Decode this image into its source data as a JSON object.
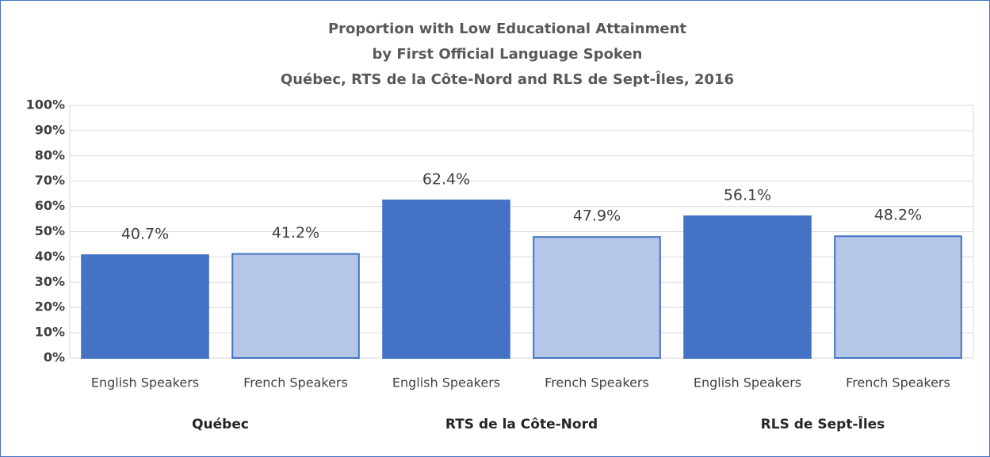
{
  "chart_data": {
    "type": "bar",
    "title": [
      "Proportion with Low Educational Attainment",
      "by First Official Language Spoken",
      "Québec, RTS de la Côte-Nord and RLS de Sept-Îles, 2016"
    ],
    "categories": [
      "English Speakers",
      "French Speakers",
      "English Speakers",
      "French Speakers",
      "English Speakers",
      "French Speakers"
    ],
    "groups": [
      "Québec",
      "RTS de la Côte-Nord",
      "RLS de Sept-Îles"
    ],
    "values": [
      40.7,
      41.2,
      62.4,
      47.9,
      56.1,
      48.2
    ],
    "value_labels": [
      "40.7%",
      "41.2%",
      "62.4%",
      "47.9%",
      "56.1%",
      "48.2%"
    ],
    "colors": [
      "#4472c4",
      "#b4c7e7",
      "#4472c4",
      "#b4c7e7",
      "#4472c4",
      "#b4c7e7"
    ],
    "ylim": [
      0,
      100
    ],
    "yticks": [
      {
        "value": 0,
        "label": "0%"
      },
      {
        "value": 10,
        "label": "10%"
      },
      {
        "value": 20,
        "label": "20%"
      },
      {
        "value": 30,
        "label": "30%"
      },
      {
        "value": 40,
        "label": "40%"
      },
      {
        "value": 50,
        "label": "50%"
      },
      {
        "value": 60,
        "label": "60%"
      },
      {
        "value": 70,
        "label": "70%"
      },
      {
        "value": 80,
        "label": "80%"
      },
      {
        "value": 90,
        "label": "90%"
      },
      {
        "value": 100,
        "label": "100%"
      }
    ],
    "grid": true
  }
}
